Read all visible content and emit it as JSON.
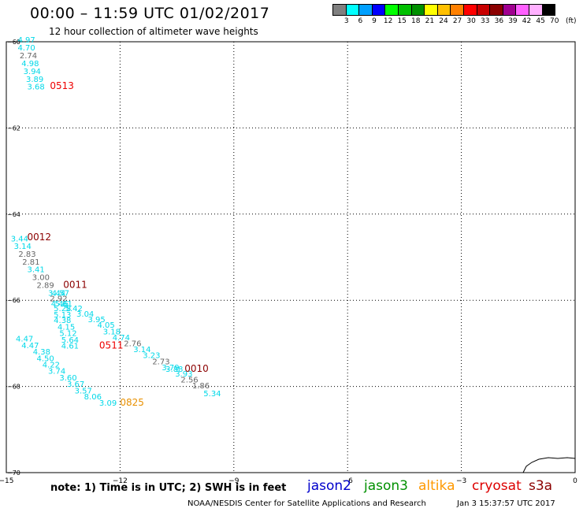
{
  "header": {
    "title": "00:00 – 11:59 UTC 01/02/2017",
    "subtitle": "12 hour collection of altimeter wave heights"
  },
  "legend": {
    "colors": [
      "#808080",
      "#00ffff",
      "#00a0ff",
      "#0000ff",
      "#00ff00",
      "#00c000",
      "#009000",
      "#ffff00",
      "#ffc000",
      "#ff8000",
      "#ff0000",
      "#c80000",
      "#8b0000",
      "#a00090",
      "#ff60ff",
      "#ffb0ff",
      "#000000"
    ],
    "labels": [
      "3",
      "6",
      "9",
      "12",
      "15",
      "18",
      "21",
      "24",
      "27",
      "30",
      "33",
      "36",
      "39",
      "42",
      "45",
      "70"
    ],
    "unit": "(ft)"
  },
  "footer": {
    "note": "note: 1) Time is in UTC; 2) SWH is in feet",
    "credit": "NOAA/NESDIS Center for Satellite Applications and Research",
    "timestamp": "Jan  3 15:37:57 UTC 2017",
    "satellites": [
      {
        "name": "jason2",
        "color": "#0000cc"
      },
      {
        "name": "jason3",
        "color": "#009000"
      },
      {
        "name": "altika",
        "color": "#ff9900"
      },
      {
        "name": "cryosat",
        "color": "#dd0000"
      },
      {
        "name": "s3a",
        "color": "#8b0000"
      }
    ]
  },
  "chart_data": {
    "type": "scatter",
    "xlim": [
      -15,
      0
    ],
    "ylim": [
      -70,
      -60
    ],
    "xticks": [
      -15,
      -12,
      -9,
      -6,
      -3,
      0
    ],
    "yticks": [
      -60,
      -62,
      -64,
      -66,
      -68,
      -70
    ],
    "grid": true,
    "colors": {
      "cyan": "#00d8e8",
      "gray": "#666666",
      "red": "#ee0000",
      "darkred": "#8b0000",
      "orange": "#e89000"
    },
    "points": [
      {
        "x": -14.7,
        "y": -60.02,
        "label": "4.97",
        "c": "cyan"
      },
      {
        "x": -14.7,
        "y": -60.2,
        "label": "4.70",
        "c": "cyan"
      },
      {
        "x": -14.65,
        "y": -60.38,
        "label": "2.74",
        "c": "gray"
      },
      {
        "x": -14.6,
        "y": -60.57,
        "label": "4.98",
        "c": "cyan"
      },
      {
        "x": -14.55,
        "y": -60.75,
        "label": "3.94",
        "c": "cyan"
      },
      {
        "x": -14.48,
        "y": -60.93,
        "label": "3.89",
        "c": "cyan"
      },
      {
        "x": -14.45,
        "y": -61.11,
        "label": "3.68",
        "c": "cyan"
      },
      {
        "x": -14.88,
        "y": -64.63,
        "label": "3.44",
        "c": "cyan"
      },
      {
        "x": -14.8,
        "y": -64.81,
        "label": "3.14",
        "c": "cyan"
      },
      {
        "x": -14.68,
        "y": -64.99,
        "label": "2.83",
        "c": "gray"
      },
      {
        "x": -14.58,
        "y": -65.17,
        "label": "2.81",
        "c": "gray"
      },
      {
        "x": -14.45,
        "y": -65.35,
        "label": "3.41",
        "c": "cyan"
      },
      {
        "x": -14.32,
        "y": -65.53,
        "label": "3.00",
        "c": "gray"
      },
      {
        "x": -14.2,
        "y": -65.71,
        "label": "2.89",
        "c": "gray"
      },
      {
        "x": -13.9,
        "y": -65.9,
        "label": "3.44",
        "c": "cyan"
      },
      {
        "x": -13.8,
        "y": -65.9,
        "label": "4.57",
        "c": "cyan"
      },
      {
        "x": -13.85,
        "y": -66.02,
        "label": "2.92",
        "c": "gray"
      },
      {
        "x": -13.82,
        "y": -66.14,
        "label": "4.46",
        "c": "cyan"
      },
      {
        "x": -13.72,
        "y": -66.14,
        "label": "5.61",
        "c": "cyan"
      },
      {
        "x": -13.75,
        "y": -66.25,
        "label": "5.28",
        "c": "cyan"
      },
      {
        "x": -13.45,
        "y": -66.25,
        "label": "5.42",
        "c": "cyan"
      },
      {
        "x": -13.75,
        "y": -66.4,
        "label": "5.13",
        "c": "cyan"
      },
      {
        "x": -13.15,
        "y": -66.38,
        "label": "3.04",
        "c": "cyan"
      },
      {
        "x": -13.75,
        "y": -66.53,
        "label": "4.38",
        "c": "cyan"
      },
      {
        "x": -12.85,
        "y": -66.51,
        "label": "3.95",
        "c": "cyan"
      },
      {
        "x": -13.65,
        "y": -66.68,
        "label": "4.15",
        "c": "cyan"
      },
      {
        "x": -12.6,
        "y": -66.64,
        "label": "4.05",
        "c": "cyan"
      },
      {
        "x": -13.6,
        "y": -66.83,
        "label": "5.12",
        "c": "cyan"
      },
      {
        "x": -12.45,
        "y": -66.79,
        "label": "3.18",
        "c": "cyan"
      },
      {
        "x": -13.55,
        "y": -66.98,
        "label": "5.64",
        "c": "cyan"
      },
      {
        "x": -12.2,
        "y": -66.93,
        "label": "4.74",
        "c": "cyan"
      },
      {
        "x": -14.75,
        "y": -66.96,
        "label": "4.47",
        "c": "cyan"
      },
      {
        "x": -14.6,
        "y": -67.11,
        "label": "4.47",
        "c": "cyan"
      },
      {
        "x": -13.55,
        "y": -67.12,
        "label": "4.61",
        "c": "cyan"
      },
      {
        "x": -11.9,
        "y": -67.07,
        "label": "2.76",
        "c": "gray"
      },
      {
        "x": -14.3,
        "y": -67.26,
        "label": "4.38",
        "c": "cyan"
      },
      {
        "x": -11.65,
        "y": -67.2,
        "label": "3.14",
        "c": "cyan"
      },
      {
        "x": -14.2,
        "y": -67.41,
        "label": "4.50",
        "c": "cyan"
      },
      {
        "x": -11.4,
        "y": -67.34,
        "label": "3.23",
        "c": "cyan"
      },
      {
        "x": -14.05,
        "y": -67.56,
        "label": "4.22",
        "c": "cyan"
      },
      {
        "x": -11.15,
        "y": -67.49,
        "label": "2.73",
        "c": "gray"
      },
      {
        "x": -13.9,
        "y": -67.71,
        "label": "3.74",
        "c": "cyan"
      },
      {
        "x": -10.9,
        "y": -67.62,
        "label": "3.79",
        "c": "cyan"
      },
      {
        "x": -10.8,
        "y": -67.66,
        "label": "3.88",
        "c": "cyan"
      },
      {
        "x": -10.55,
        "y": -67.77,
        "label": "3.93",
        "c": "cyan"
      },
      {
        "x": -13.6,
        "y": -67.86,
        "label": "3.60",
        "c": "cyan"
      },
      {
        "x": -10.4,
        "y": -67.91,
        "label": "2.56",
        "c": "gray"
      },
      {
        "x": -13.4,
        "y": -68.01,
        "label": "3.67",
        "c": "cyan"
      },
      {
        "x": -10.1,
        "y": -68.04,
        "label": "1.86",
        "c": "gray"
      },
      {
        "x": -13.2,
        "y": -68.16,
        "label": "3.57",
        "c": "cyan"
      },
      {
        "x": -9.8,
        "y": -68.23,
        "label": "5.34",
        "c": "cyan"
      },
      {
        "x": -12.95,
        "y": -68.3,
        "label": "8.06",
        "c": "cyan"
      },
      {
        "x": -12.55,
        "y": -68.45,
        "label": "3.09",
        "c": "cyan"
      }
    ],
    "pass_labels": [
      {
        "x": -13.85,
        "y": -61.1,
        "label": "0513",
        "c": "red"
      },
      {
        "x": -14.45,
        "y": -64.61,
        "label": "0012",
        "c": "darkred"
      },
      {
        "x": -13.5,
        "y": -65.71,
        "label": "0011",
        "c": "darkred"
      },
      {
        "x": -12.55,
        "y": -67.12,
        "label": "0511",
        "c": "red"
      },
      {
        "x": -10.3,
        "y": -67.66,
        "label": "0010",
        "c": "darkred"
      },
      {
        "x": -12.0,
        "y": -68.45,
        "label": "0825",
        "c": "orange"
      }
    ]
  }
}
